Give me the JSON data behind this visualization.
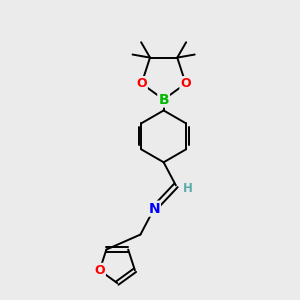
{
  "background_color": "#ebebeb",
  "atom_colors": {
    "B": "#00bb00",
    "O": "#ff0000",
    "N": "#0000ff",
    "C": "#000000",
    "H": "#5aacac"
  },
  "bond_color": "#000000",
  "bond_width": 1.4,
  "figsize": [
    3.0,
    3.0
  ],
  "dpi": 100,
  "xlim": [
    0,
    10
  ],
  "ylim": [
    0,
    11
  ]
}
